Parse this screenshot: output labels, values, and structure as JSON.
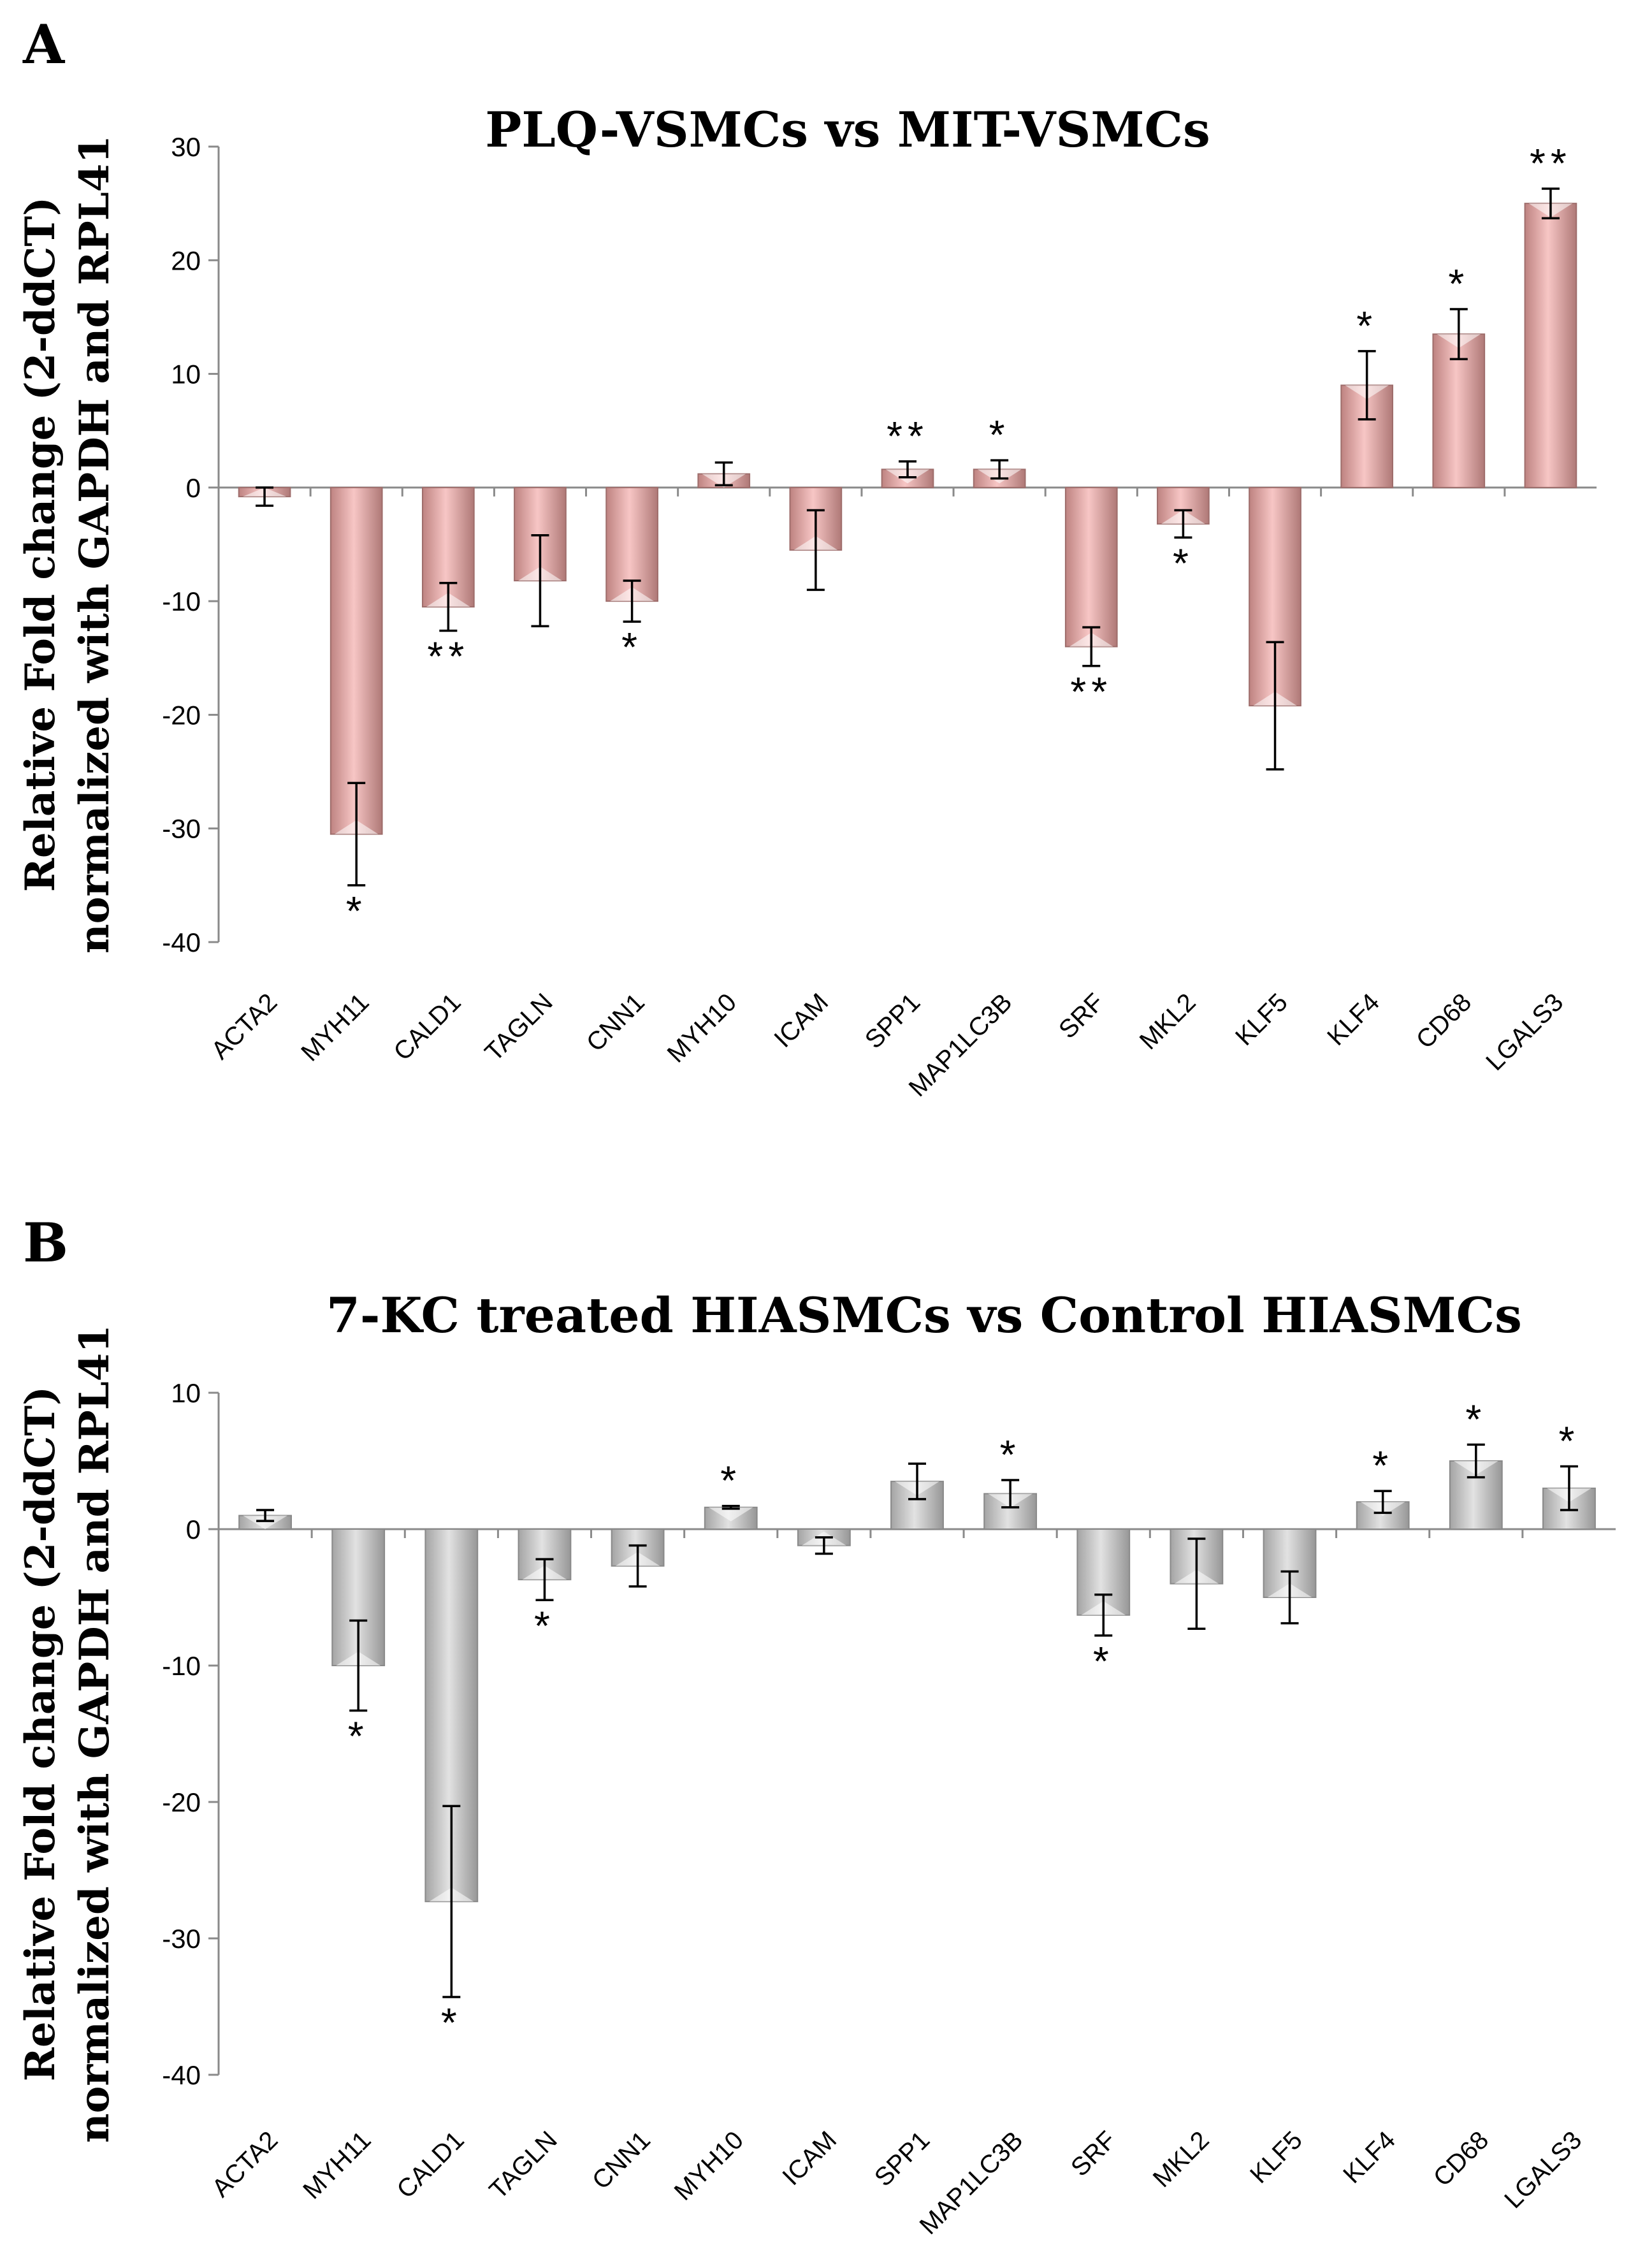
{
  "chart_data": [
    {
      "panel": "A",
      "type": "bar",
      "title": "PLQ-VSMCs vs MIT-VSMCs",
      "ylabel_line1": "Relative Fold change (2-ddCT)",
      "ylabel_line2": "normalized with GAPDH and RPL41",
      "ylim": [
        -40,
        30
      ],
      "ticks": [
        30,
        20,
        10,
        0,
        -10,
        -20,
        -30,
        -40
      ],
      "categories": [
        "ACTA2",
        "MYH11",
        "CALD1",
        "TAGLN",
        "CNN1",
        "MYH10",
        "ICAM",
        "SPP1",
        "MAP1LC3B",
        "SRF",
        "MKL2",
        "KLF5",
        "KLF4",
        "CD68",
        "LGALS3"
      ],
      "values": [
        -0.8,
        -30.5,
        -10.5,
        -8.2,
        -10.0,
        1.2,
        -5.5,
        1.6,
        1.6,
        -14.0,
        -3.2,
        -19.2,
        9.0,
        13.5,
        25.0
      ],
      "errors": [
        0.8,
        4.5,
        2.1,
        4.0,
        1.8,
        1.0,
        3.5,
        0.7,
        0.8,
        1.7,
        1.2,
        5.6,
        3.0,
        2.2,
        1.3
      ],
      "significance": [
        "",
        "*",
        "**",
        "",
        "*",
        "",
        "",
        "**",
        "*",
        "**",
        "*",
        "",
        "*",
        "*",
        "**"
      ],
      "bar_color": "#F3A8A5"
    },
    {
      "panel": "B",
      "type": "bar",
      "title": "7-KC treated HIASMCs vs Control HIASMCs",
      "ylabel_line1": "Relative Fold change (2-ddCT)",
      "ylabel_line2": "normalized with GAPDH and RPL41",
      "ylim": [
        -40,
        10
      ],
      "ticks": [
        10,
        0,
        -10,
        -20,
        -30,
        -40
      ],
      "categories": [
        "ACTA2",
        "MYH11",
        "CALD1",
        "TAGLN",
        "CNN1",
        "MYH10",
        "ICAM",
        "SPP1",
        "MAP1LC3B",
        "SRF",
        "MKL2",
        "KLF5",
        "KLF4",
        "CD68",
        "LGALS3"
      ],
      "values": [
        1.0,
        -10.0,
        -27.3,
        -3.7,
        -2.7,
        1.6,
        -1.2,
        3.5,
        2.6,
        -6.3,
        -4.0,
        -5.0,
        2.0,
        5.0,
        3.0
      ],
      "errors": [
        0.4,
        3.3,
        7.0,
        1.5,
        1.5,
        0.1,
        0.6,
        1.3,
        1.0,
        1.5,
        3.3,
        1.9,
        0.8,
        1.2,
        1.6
      ],
      "significance": [
        "",
        "*",
        "*",
        "*",
        "",
        "*",
        "",
        "",
        "*",
        "*",
        "",
        "",
        "*",
        "*",
        "*"
      ],
      "bar_color": "#D2D2D2"
    }
  ],
  "panels": {
    "a_letter": "A",
    "b_letter": "B"
  }
}
